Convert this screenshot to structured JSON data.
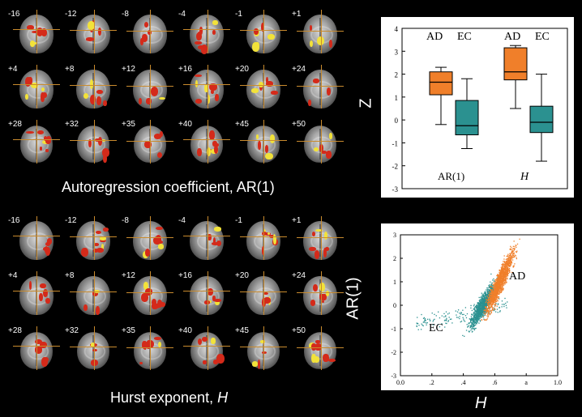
{
  "ar_panel": {
    "title": "Autoregression coefficient, AR(1)",
    "slice_labels": [
      "-16",
      "-12",
      "-8",
      "-4",
      "-1",
      "+1",
      "+4",
      "+8",
      "+12",
      "+16",
      "+20",
      "+24",
      "+28",
      "+32",
      "+35",
      "+40",
      "+45",
      "+50"
    ]
  },
  "hurst_panel": {
    "title_prefix": "Hurst exponent, ",
    "title_var": "H",
    "slice_labels": [
      "-16",
      "-12",
      "-8",
      "-4",
      "-1",
      "+1",
      "+4",
      "+8",
      "+12",
      "+16",
      "+20",
      "+24",
      "+28",
      "+32",
      "+35",
      "+40",
      "+45",
      "+50"
    ]
  },
  "colors": {
    "AD": "#f07f2a",
    "EC": "#2b9190",
    "activation_red": "#d42a1a",
    "activation_yellow": "#f2e23a",
    "crosshair": "#c98b2e"
  },
  "chart_data": [
    {
      "type": "box",
      "ylabel": "Z",
      "ylim": [
        -3,
        4
      ],
      "yticks": [
        "4",
        "3",
        "2",
        "1",
        "0",
        "-1",
        "-2",
        "-3"
      ],
      "group_labels": [
        "AR(1)",
        "H"
      ],
      "legend_labels": [
        "AD",
        "EC",
        "AD",
        "EC"
      ],
      "boxes": [
        {
          "group": "AR(1)",
          "name": "AD",
          "whisker_low": -0.2,
          "q1": 1.1,
          "median": 1.65,
          "q3": 2.1,
          "whisker_high": 2.3
        },
        {
          "group": "AR(1)",
          "name": "EC",
          "whisker_low": -1.25,
          "q1": -0.65,
          "median": -0.25,
          "q3": 0.85,
          "whisker_high": 1.8
        },
        {
          "group": "H",
          "name": "AD",
          "whisker_low": 0.5,
          "q1": 1.75,
          "median": 2.1,
          "q3": 3.15,
          "whisker_high": 3.25
        },
        {
          "group": "H",
          "name": "EC",
          "whisker_low": -1.8,
          "q1": -0.55,
          "median": -0.1,
          "q3": 0.6,
          "whisker_high": 2.0
        }
      ]
    },
    {
      "type": "scatter",
      "xlabel": "H",
      "ylabel": "AR(1)",
      "xlim": [
        0.0,
        1.0
      ],
      "ylim": [
        -3,
        3
      ],
      "xticks": [
        "0.0",
        ".2",
        ".4",
        ".6",
        "a",
        "1.0"
      ],
      "yticks": [
        "3",
        "2",
        "1",
        "0",
        "-1",
        "-2",
        "-3"
      ],
      "series": [
        {
          "name": "AD",
          "center": [
            0.63,
            1.0
          ],
          "spread_x": 0.08,
          "spread_y": 0.9,
          "x_range": [
            0.45,
            0.82
          ],
          "y_range": [
            -0.6,
            2.9
          ]
        },
        {
          "name": "EC",
          "center": [
            0.52,
            0.0
          ],
          "spread_x": 0.07,
          "spread_y": 0.6,
          "x_range": [
            0.1,
            0.68
          ],
          "y_range": [
            -1.3,
            1.5
          ]
        }
      ],
      "annotations": [
        "AD",
        "EC"
      ]
    }
  ]
}
